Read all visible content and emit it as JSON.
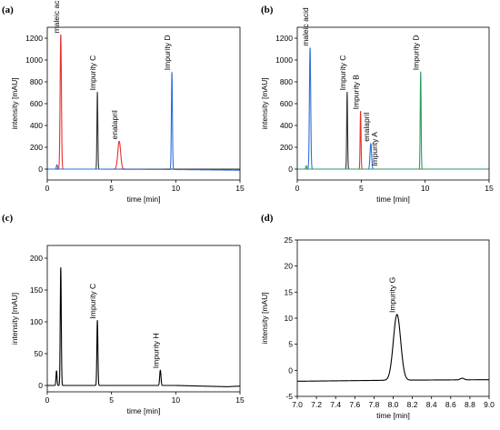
{
  "chart_data": [
    {
      "type": "line",
      "panel_label": "(a)",
      "xlabel": "time [min]",
      "ylabel": "intensity [mAU]",
      "xlim": [
        0,
        15
      ],
      "ylim": [
        -100,
        1300
      ],
      "xticks": [
        0,
        5,
        10,
        15
      ],
      "yticks": [
        0,
        200,
        400,
        600,
        800,
        1000,
        1200
      ],
      "series": [
        {
          "color": "#e8302e",
          "baseline": [
            [
              0,
              0
            ],
            [
              15,
              0
            ]
          ],
          "peaks": [
            {
              "t": 1.05,
              "h": 1230,
              "w": 0.05
            },
            {
              "t": 5.6,
              "h": 255,
              "w": 0.11
            }
          ]
        },
        {
          "color": "#333333",
          "baseline": [
            [
              0,
              0
            ],
            [
              15,
              0
            ]
          ],
          "peaks": [
            {
              "t": 3.9,
              "h": 705,
              "w": 0.035
            }
          ]
        },
        {
          "color": "#2e6fd8",
          "baseline": [
            [
              0,
              0
            ],
            [
              4,
              0
            ],
            [
              9,
              -3
            ],
            [
              15,
              -10
            ]
          ],
          "peaks": [
            {
              "t": 0.75,
              "h": 40,
              "w": 0.04
            },
            {
              "t": 9.7,
              "h": 890,
              "w": 0.04
            }
          ]
        }
      ],
      "annotations": [
        {
          "text": "maleic acid",
          "x": 1.05,
          "y": 1230
        },
        {
          "text": "Impurity C",
          "x": 3.9,
          "y": 705
        },
        {
          "text": "enalapril",
          "x": 5.6,
          "y": 255
        },
        {
          "text": "Impurity D",
          "x": 9.7,
          "y": 890
        }
      ]
    },
    {
      "type": "line",
      "panel_label": "(b)",
      "xlabel": "time [min]",
      "ylabel": "intensity [mAU]",
      "xlim": [
        0,
        15
      ],
      "ylim": [
        -100,
        1300
      ],
      "xticks": [
        0,
        5,
        10,
        15
      ],
      "yticks": [
        0,
        200,
        400,
        600,
        800,
        1000,
        1200
      ],
      "series": [
        {
          "color": "#2e6fd8",
          "baseline": [
            [
              0,
              0
            ],
            [
              15,
              0
            ]
          ],
          "peaks": [
            {
              "t": 1.0,
              "h": 1110,
              "w": 0.05
            },
            {
              "t": 5.75,
              "h": 235,
              "w": 0.06
            }
          ]
        },
        {
          "color": "#333333",
          "baseline": [
            [
              0,
              0
            ],
            [
              15,
              0
            ]
          ],
          "peaks": [
            {
              "t": 3.9,
              "h": 705,
              "w": 0.035
            }
          ]
        },
        {
          "color": "#e8302e",
          "baseline": [
            [
              0,
              0
            ],
            [
              15,
              0
            ]
          ],
          "peaks": [
            {
              "t": 4.95,
              "h": 530,
              "w": 0.035
            }
          ]
        },
        {
          "color": "#2a9d5c",
          "baseline": [
            [
              0,
              0
            ],
            [
              15,
              0
            ]
          ],
          "peaks": [
            {
              "t": 0.7,
              "h": 30,
              "w": 0.04
            },
            {
              "t": 9.65,
              "h": 890,
              "w": 0.035
            }
          ]
        }
      ],
      "annotations": [
        {
          "text": "maleic acid",
          "x": 1.0,
          "y": 1110
        },
        {
          "text": "Impurity C",
          "x": 3.9,
          "y": 705
        },
        {
          "text": "Impurity B",
          "x": 4.95,
          "y": 530
        },
        {
          "text": "enalapril",
          "x": 5.75,
          "y": 235
        },
        {
          "text": "Impurity A",
          "x": 6.4,
          "y": 10
        },
        {
          "text": "Impurity D",
          "x": 9.65,
          "y": 890
        }
      ]
    },
    {
      "type": "line",
      "panel_label": "(c)",
      "xlabel": "time [min]",
      "ylabel": "intensity [mAU]",
      "xlim": [
        0,
        15
      ],
      "ylim": [
        -10,
        220
      ],
      "xticks": [
        0,
        5,
        10,
        15
      ],
      "yticks": [
        0,
        50,
        100,
        150,
        200
      ],
      "series": [
        {
          "color": "#000000",
          "baseline": [
            [
              0,
              0
            ],
            [
              10,
              0
            ],
            [
              14,
              -2
            ],
            [
              15,
              -1
            ]
          ],
          "peaks": [
            {
              "t": 0.72,
              "h": 23,
              "w": 0.04
            },
            {
              "t": 1.05,
              "h": 185,
              "w": 0.04
            },
            {
              "t": 3.9,
              "h": 102,
              "w": 0.04
            },
            {
              "t": 8.8,
              "h": 24,
              "w": 0.05
            }
          ]
        }
      ],
      "annotations": [
        {
          "text": "Impurity C",
          "x": 3.9,
          "y": 102
        },
        {
          "text": "Impurity H",
          "x": 8.8,
          "y": 24
        }
      ]
    },
    {
      "type": "line",
      "panel_label": "(d)",
      "xlabel": "time [min]",
      "ylabel": "intensity [mAU]",
      "xlim": [
        7.0,
        9.0
      ],
      "ylim": [
        -5,
        25
      ],
      "xticks": [
        "7.0",
        "7.2",
        "7.4",
        "7.6",
        "7.8",
        "8.0",
        "8.2",
        "8.4",
        "8.6",
        "8.8",
        "9.0"
      ],
      "yticks": [
        -5,
        0,
        5,
        10,
        15,
        20,
        25
      ],
      "series": [
        {
          "color": "#000000",
          "baseline": [
            [
              7.0,
              -2.1
            ],
            [
              8.0,
              -1.9
            ],
            [
              9.0,
              -1.8
            ]
          ],
          "peaks": [
            {
              "t": 8.04,
              "h": 12.6,
              "w": 0.038
            },
            {
              "t": 8.72,
              "h": 0.3,
              "w": 0.02
            }
          ]
        }
      ],
      "annotations": [
        {
          "text": "Impurity G",
          "x": 8.04,
          "y": 10.7
        }
      ]
    }
  ]
}
